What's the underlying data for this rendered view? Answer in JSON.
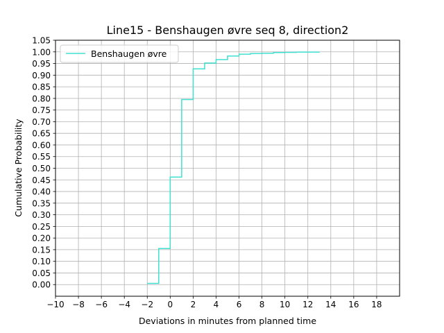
{
  "chart_data": {
    "type": "line",
    "step": "post",
    "title": "Line15 - Benshaugen øvre seq 8, direction2",
    "xlabel": "Deviations in minutes from planned time",
    "ylabel": "Cumulative Probability",
    "xlim": [
      -10,
      20
    ],
    "ylim": [
      -0.05,
      1.05
    ],
    "xticks": [
      -10,
      -8,
      -6,
      -4,
      -2,
      0,
      2,
      4,
      6,
      8,
      10,
      12,
      14,
      16,
      18
    ],
    "xtick_labels": [
      "−10",
      "−8",
      "−6",
      "−4",
      "−2",
      "0",
      "2",
      "4",
      "6",
      "8",
      "10",
      "12",
      "14",
      "16",
      "18"
    ],
    "yticks": [
      0.0,
      0.05,
      0.1,
      0.15,
      0.2,
      0.25,
      0.3,
      0.35,
      0.4,
      0.45,
      0.5,
      0.55,
      0.6,
      0.65,
      0.7,
      0.75,
      0.8,
      0.85,
      0.9,
      0.95,
      1.0,
      1.05
    ],
    "ytick_labels": [
      "0.00",
      "0.05",
      "0.10",
      "0.15",
      "0.20",
      "0.25",
      "0.30",
      "0.35",
      "0.40",
      "0.45",
      "0.50",
      "0.55",
      "0.60",
      "0.65",
      "0.70",
      "0.75",
      "0.80",
      "0.85",
      "0.90",
      "0.95",
      "1.00",
      "1.05"
    ],
    "grid": true,
    "legend_position": "top-left",
    "series": [
      {
        "name": "Benshaugen øvre",
        "color": "#40e0d0",
        "x": [
          -2,
          -1,
          0,
          1,
          2,
          3,
          4,
          5,
          6,
          7,
          8,
          9,
          10,
          11,
          12,
          13
        ],
        "y": [
          0.005,
          0.155,
          0.462,
          0.795,
          0.927,
          0.952,
          0.967,
          0.982,
          0.99,
          0.993,
          0.994,
          0.997,
          0.998,
          0.999,
          0.999,
          1.0
        ]
      }
    ]
  }
}
